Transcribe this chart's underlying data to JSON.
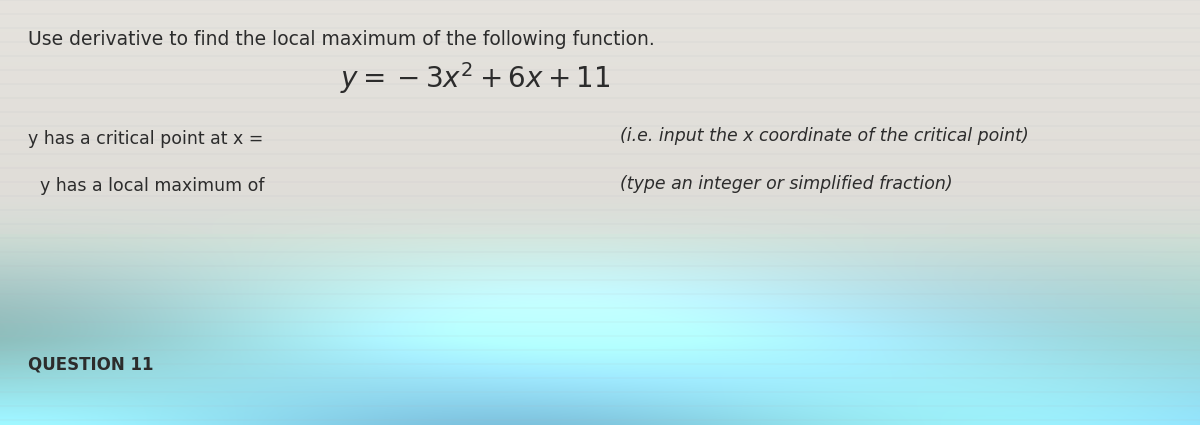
{
  "title_line": "Use derivative to find the local maximum of the following function.",
  "equation_display": "$y = -3x^2 + 6x + 11$",
  "line1_left": "y has a critical point at x =",
  "line1_right": "(i.e. input the x coordinate of the critical point)",
  "line2_left": "y has a local maximum of",
  "line2_right": "(type an integer or simplified fraction)",
  "footer": "QUESTION 11",
  "text_color": "#2c2c2c",
  "title_fontsize": 13.5,
  "eq_fontsize": 20,
  "body_fontsize": 12.5,
  "footer_fontsize": 12
}
